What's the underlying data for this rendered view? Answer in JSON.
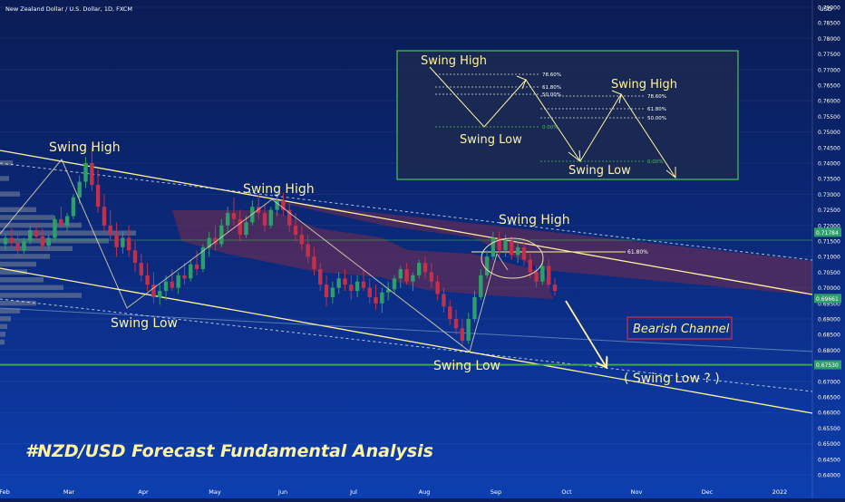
{
  "header": {
    "symbol": "New Zealand Dollar / U.S. Dollar, 1D, FXCM",
    "currency": "USD"
  },
  "title": "#NZD/USD Forecast Fundamental Analysis",
  "colors": {
    "background_top": "#0a1c54",
    "background_bottom": "#0d3fb0",
    "candle_up": "#2e9e6b",
    "candle_down": "#c2304a",
    "annotation": "#fff3a0",
    "support_line": "#3fa85a",
    "cloud": "#7a2c4a",
    "channel_label_border": "#d0304a",
    "inset_border": "#4cc05a"
  },
  "chart_data": {
    "type": "candlestick",
    "y_axis": {
      "min": 0.64,
      "max": 0.79,
      "step": 0.005,
      "side": "right"
    },
    "x_axis": {
      "labels": [
        "Feb",
        "Mar",
        "Apr",
        "May",
        "Jun",
        "Jul",
        "Aug",
        "Sep",
        "Oct",
        "Nov",
        "Dec",
        "2022"
      ]
    },
    "price_tags": [
      {
        "value": 0.7178,
        "label": "0.71784",
        "color": "#2e9e6b"
      },
      {
        "value": 0.6966,
        "label": "0.69661",
        "color": "#2e9e6b"
      },
      {
        "value": 0.6753,
        "label": "0.67530",
        "color": "#2e9e6b"
      }
    ],
    "support_level": 0.6753,
    "fib_level": {
      "value": 0.7115,
      "label": "61.80%"
    },
    "annotations": [
      {
        "text": "Swing High",
        "kind": "high"
      },
      {
        "text": "Swing High",
        "kind": "high"
      },
      {
        "text": "Swing High",
        "kind": "high"
      },
      {
        "text": "Swing Low",
        "kind": "low"
      },
      {
        "text": "Swing Low",
        "kind": "low"
      },
      {
        "text": "( Swing Low ? )",
        "kind": "projection"
      }
    ],
    "channel_label": "Bearish Channel",
    "inset": {
      "labels": {
        "high_1": "Swing High",
        "low_1": "Swing Low",
        "high_2": "Swing High",
        "low_2": "Swing Low"
      },
      "fib_levels_1": [
        "78.60%",
        "61.80%",
        "50.00%",
        "0.00%"
      ],
      "fib_levels_2": [
        "78.60%",
        "61.80%",
        "50.00%",
        "0.00%"
      ]
    },
    "candles": [
      [
        0.714,
        0.7175,
        0.712,
        0.716
      ],
      [
        0.716,
        0.719,
        0.713,
        0.7145
      ],
      [
        0.7145,
        0.717,
        0.71,
        0.712
      ],
      [
        0.712,
        0.716,
        0.711,
        0.715
      ],
      [
        0.715,
        0.72,
        0.714,
        0.7185
      ],
      [
        0.7185,
        0.721,
        0.715,
        0.7165
      ],
      [
        0.7165,
        0.719,
        0.712,
        0.7135
      ],
      [
        0.7135,
        0.717,
        0.712,
        0.716
      ],
      [
        0.716,
        0.723,
        0.715,
        0.722
      ],
      [
        0.722,
        0.726,
        0.719,
        0.72
      ],
      [
        0.72,
        0.724,
        0.718,
        0.723
      ],
      [
        0.723,
        0.73,
        0.722,
        0.729
      ],
      [
        0.729,
        0.736,
        0.727,
        0.734
      ],
      [
        0.734,
        0.742,
        0.732,
        0.74
      ],
      [
        0.74,
        0.745,
        0.731,
        0.733
      ],
      [
        0.733,
        0.738,
        0.724,
        0.726
      ],
      [
        0.726,
        0.73,
        0.718,
        0.72
      ],
      [
        0.72,
        0.725,
        0.715,
        0.717
      ],
      [
        0.717,
        0.721,
        0.71,
        0.713
      ],
      [
        0.713,
        0.718,
        0.711,
        0.716
      ],
      [
        0.716,
        0.72,
        0.71,
        0.712
      ],
      [
        0.712,
        0.715,
        0.705,
        0.708
      ],
      [
        0.708,
        0.711,
        0.702,
        0.704
      ],
      [
        0.704,
        0.708,
        0.699,
        0.701
      ],
      [
        0.701,
        0.705,
        0.695,
        0.697
      ],
      [
        0.697,
        0.701,
        0.6945,
        0.699
      ],
      [
        0.699,
        0.704,
        0.696,
        0.702
      ],
      [
        0.702,
        0.706,
        0.699,
        0.7
      ],
      [
        0.7,
        0.705,
        0.698,
        0.704
      ],
      [
        0.704,
        0.708,
        0.701,
        0.703
      ],
      [
        0.703,
        0.709,
        0.702,
        0.7075
      ],
      [
        0.7075,
        0.712,
        0.704,
        0.706
      ],
      [
        0.706,
        0.714,
        0.705,
        0.713
      ],
      [
        0.713,
        0.718,
        0.71,
        0.716
      ],
      [
        0.716,
        0.72,
        0.712,
        0.714
      ],
      [
        0.714,
        0.722,
        0.713,
        0.72
      ],
      [
        0.72,
        0.726,
        0.718,
        0.724
      ],
      [
        0.724,
        0.729,
        0.72,
        0.722
      ],
      [
        0.722,
        0.725,
        0.715,
        0.717
      ],
      [
        0.717,
        0.723,
        0.716,
        0.721
      ],
      [
        0.721,
        0.728,
        0.72,
        0.726
      ],
      [
        0.726,
        0.73,
        0.722,
        0.724
      ],
      [
        0.724,
        0.727,
        0.718,
        0.72
      ],
      [
        0.72,
        0.726,
        0.719,
        0.725
      ],
      [
        0.725,
        0.731,
        0.723,
        0.728
      ],
      [
        0.728,
        0.7305,
        0.723,
        0.725
      ],
      [
        0.725,
        0.727,
        0.718,
        0.72
      ],
      [
        0.72,
        0.724,
        0.715,
        0.717
      ],
      [
        0.717,
        0.72,
        0.712,
        0.714
      ],
      [
        0.714,
        0.717,
        0.708,
        0.71
      ],
      [
        0.71,
        0.713,
        0.704,
        0.706
      ],
      [
        0.706,
        0.708,
        0.699,
        0.701
      ],
      [
        0.701,
        0.704,
        0.694,
        0.697
      ],
      [
        0.697,
        0.702,
        0.695,
        0.7
      ],
      [
        0.7,
        0.705,
        0.698,
        0.703
      ],
      [
        0.703,
        0.706,
        0.699,
        0.701
      ],
      [
        0.701,
        0.704,
        0.696,
        0.699
      ],
      [
        0.699,
        0.704,
        0.697,
        0.702
      ],
      [
        0.702,
        0.706,
        0.699,
        0.7
      ],
      [
        0.7,
        0.703,
        0.695,
        0.697
      ],
      [
        0.697,
        0.701,
        0.693,
        0.695
      ],
      [
        0.695,
        0.7,
        0.692,
        0.6985
      ],
      [
        0.6985,
        0.702,
        0.696,
        0.6995
      ],
      [
        0.6995,
        0.704,
        0.698,
        0.703
      ],
      [
        0.703,
        0.707,
        0.7,
        0.706
      ],
      [
        0.706,
        0.708,
        0.701,
        0.702
      ],
      [
        0.702,
        0.705,
        0.699,
        0.704
      ],
      [
        0.704,
        0.709,
        0.703,
        0.708
      ],
      [
        0.708,
        0.71,
        0.703,
        0.705
      ],
      [
        0.705,
        0.708,
        0.7,
        0.702
      ],
      [
        0.702,
        0.704,
        0.696,
        0.698
      ],
      [
        0.698,
        0.7,
        0.692,
        0.694
      ],
      [
        0.694,
        0.696,
        0.688,
        0.69
      ],
      [
        0.69,
        0.693,
        0.685,
        0.687
      ],
      [
        0.687,
        0.69,
        0.681,
        0.683
      ],
      [
        0.683,
        0.692,
        0.682,
        0.69
      ],
      [
        0.69,
        0.699,
        0.689,
        0.697
      ],
      [
        0.697,
        0.706,
        0.696,
        0.704
      ],
      [
        0.704,
        0.712,
        0.703,
        0.71
      ],
      [
        0.71,
        0.718,
        0.709,
        0.716
      ],
      [
        0.716,
        0.718,
        0.71,
        0.712
      ],
      [
        0.712,
        0.717,
        0.71,
        0.715
      ],
      [
        0.715,
        0.7165,
        0.709,
        0.7105
      ],
      [
        0.7105,
        0.715,
        0.708,
        0.713
      ],
      [
        0.713,
        0.716,
        0.707,
        0.709
      ],
      [
        0.709,
        0.711,
        0.703,
        0.705
      ],
      [
        0.705,
        0.707,
        0.7,
        0.702
      ],
      [
        0.702,
        0.708,
        0.701,
        0.707
      ],
      [
        0.707,
        0.709,
        0.7,
        0.701
      ],
      [
        0.701,
        0.703,
        0.6975,
        0.699
      ]
    ]
  }
}
